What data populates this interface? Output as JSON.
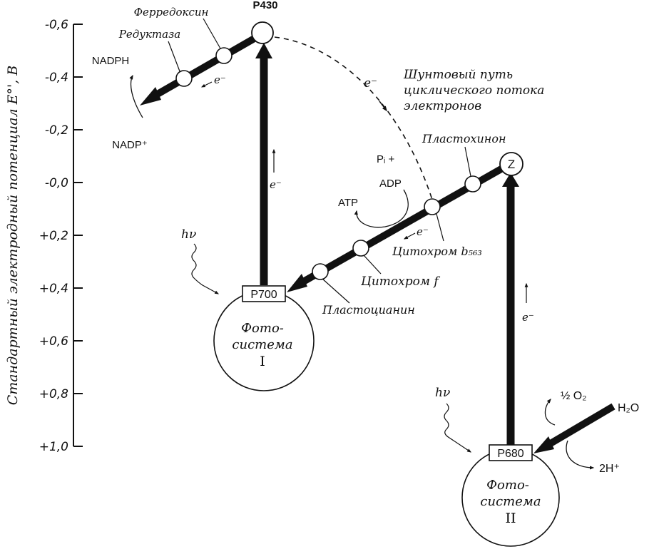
{
  "axis": {
    "title": "Стандартный электродный потенциал E°', В",
    "ticks": [
      {
        "label": "-0,6",
        "value": -0.6
      },
      {
        "label": "-0,4",
        "value": -0.4
      },
      {
        "label": "-0,2",
        "value": -0.2
      },
      {
        "label": "-0,0",
        "value": 0.0
      },
      {
        "label": "+0,2",
        "value": 0.2
      },
      {
        "label": "+0,4",
        "value": 0.4
      },
      {
        "label": "+0,6",
        "value": 0.6
      },
      {
        "label": "+0,8",
        "value": 0.8
      },
      {
        "label": "+1,0",
        "value": 1.0
      }
    ]
  },
  "labels": {
    "p430": "P430",
    "ferredoxin": "Ферредоксин",
    "reductase": "Редуктаза",
    "nadph": "NADPH",
    "nadp": "NADP⁺",
    "shunt_e": "e⁻",
    "shunt_line1": "Шунтовый путь",
    "shunt_line2": "циклического потока",
    "shunt_line3": "электронов",
    "plastoquinone": "Пластохинон",
    "z": "Z",
    "pi": "Pᵢ +",
    "adp": "ADP",
    "atp": "ATP",
    "cyt_b": "Цитохром b₅₆₃",
    "cyt_f": "Цитохром f",
    "plastocyanin": "Пластоцианин",
    "p700": "P700",
    "p680": "P680",
    "ps1_line1": "Фото-",
    "ps1_line2": "система",
    "ps1_line3": "I",
    "ps2_line1": "Фото-",
    "ps2_line2": "система",
    "ps2_line3": "II",
    "hv1": "hν",
    "hv2": "hν",
    "e_upper": "e⁻",
    "e_ps1": "e⁻",
    "e_mid": "e⁻",
    "e_ps2": "e⁻",
    "o2": "½ O₂",
    "h2o": "H₂O",
    "h_plus": "2H⁺"
  }
}
